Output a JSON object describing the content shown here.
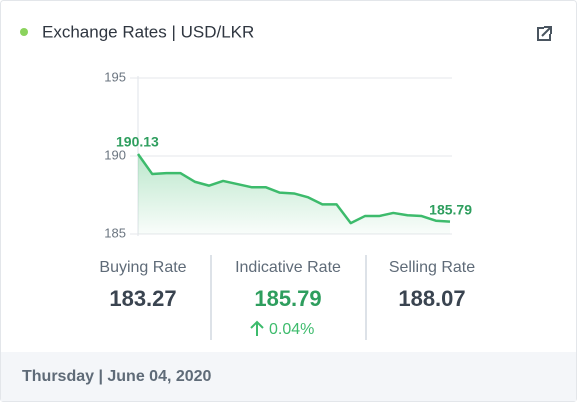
{
  "header": {
    "title": "Exchange Rates | USD/LKR"
  },
  "chart_data": {
    "type": "line",
    "categories": [
      null,
      null,
      null,
      null,
      null,
      null,
      null,
      null,
      null,
      null,
      null,
      null,
      null,
      null,
      null,
      null,
      null,
      null,
      null,
      null,
      null,
      null,
      null
    ],
    "values": [
      190.13,
      188.85,
      188.9,
      188.9,
      188.35,
      188.1,
      188.4,
      188.2,
      188.0,
      188.0,
      187.65,
      187.6,
      187.35,
      186.9,
      186.9,
      185.7,
      186.15,
      186.15,
      186.35,
      186.2,
      186.15,
      185.85,
      185.79
    ],
    "color": "#3dbb6c",
    "ylim": [
      185,
      195
    ],
    "yticks": [
      185,
      190,
      195
    ],
    "grid": true
  },
  "rates": [
    {
      "label": "Buying Rate",
      "value": "183.27"
    },
    {
      "label": "Indicative Rate",
      "value": "185.79",
      "change": "0.04%"
    },
    {
      "label": "Selling Rate",
      "value": "188.07"
    }
  ],
  "footer": {
    "date": "Thursday | June 04, 2020"
  }
}
